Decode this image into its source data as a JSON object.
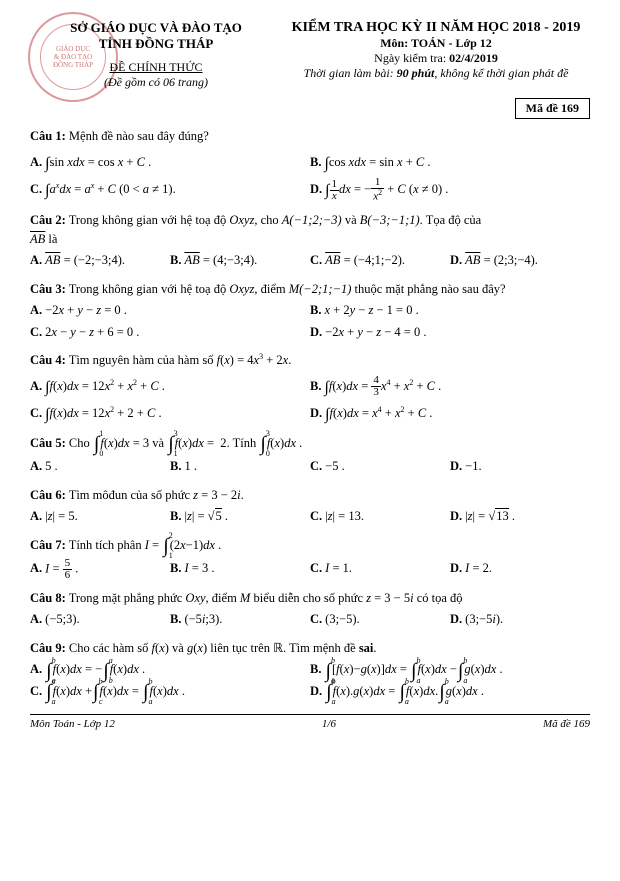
{
  "header": {
    "org1": "SỞ GIÁO DỤC VÀ ĐÀO TẠO",
    "org2": "TỈNH ĐỒNG THÁP",
    "official": "ĐỀ CHÍNH THỨC",
    "pages_note": "(Đề gồm có 06 trang)",
    "stamp_top": "GIÁO DỤC",
    "stamp_mid": "& ĐÀO TẠO",
    "stamp_bot": "ĐỒNG THÁP",
    "exam_title": "KIỂM TRA HỌC KỲ II NĂM HỌC 2018 - 2019",
    "subject": "Môn: TOÁN - Lớp 12",
    "date": "Ngày kiểm tra: 02/4/2019",
    "time_note": "Thời gian làm bài: 90 phút, không kể thời gian phát đề",
    "code": "Mã đề 169"
  },
  "q1": {
    "label": "Câu 1:",
    "text": "Mệnh đề nào sau đây đúng?"
  },
  "q2": {
    "label": "Câu 2:",
    "text_a": "Trong không gian với hệ toạ độ ",
    "oxyz": "Oxyz",
    "text_b": ", cho ",
    "pa": "A(−1;2;−3)",
    "and": " và ",
    "pb": "B(−3;−1;1)",
    "text_c": ". Tọa độ của",
    "ab": "AB",
    "la": " là"
  },
  "q3": {
    "label": "Câu 3:",
    "text_a": "Trong không gian với hệ toạ độ ",
    "oxyz": "Oxyz",
    "text_b": ", điểm ",
    "pm": "M(−2;1;−1)",
    "text_c": " thuộc mặt phẳng nào sau đây?"
  },
  "q4": {
    "label": "Câu 4:",
    "text": "Tìm nguyên hàm của hàm số "
  },
  "q5": {
    "label": "Câu 5:",
    "text_a": "Cho ",
    "text_b": " và ",
    "text_c": ". Tính "
  },
  "q6": {
    "label": "Câu 6:",
    "text": "Tìm môđun của số phức "
  },
  "q7": {
    "label": "Câu 7:",
    "text": "Tính tích phân "
  },
  "q8": {
    "label": "Câu 8:",
    "text_a": "Trong mặt phẳng phức ",
    "oxy": "Oxy",
    "text_b": ", điểm ",
    "m": "M",
    "text_c": " biểu diễn cho số phức ",
    "text_d": " có tọa độ"
  },
  "q9": {
    "label": "Câu 9:",
    "text_a": "Cho các hàm số ",
    "text_b": " và ",
    "text_c": " liên tục trên ",
    "text_d": ". Tìm mệnh đề ",
    "sai": "sai"
  },
  "footer": {
    "left": "Môn Toán - Lớp 12",
    "center": "1/6",
    "right": "Mã đề 169"
  },
  "labels": {
    "A": "A.",
    "B": "B.",
    "C": "C.",
    "D": "D."
  }
}
